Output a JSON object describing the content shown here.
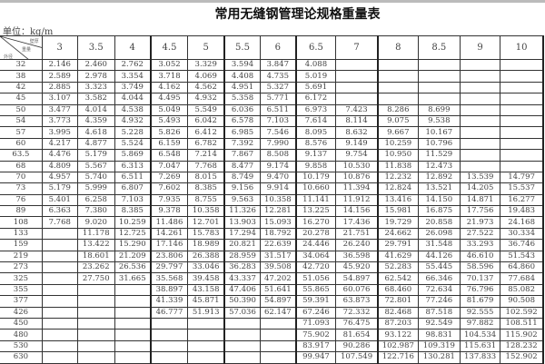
{
  "title": "常用无缝钢管理论规格重量表",
  "unit": "单位：kg/m",
  "corner": {
    "top": "壁厚",
    "middle": "重量",
    "bottom": "外径"
  },
  "columns": [
    "3",
    "3.5",
    "4",
    "4.5",
    "5",
    "5.5",
    "6",
    "6.5",
    "7",
    "8",
    "8.5",
    "9",
    "10"
  ],
  "rows": [
    {
      "od": "32",
      "v": [
        "2.146",
        "2.460",
        "2.762",
        "3.052",
        "3.329",
        "3.594",
        "3.847",
        "4.088",
        null,
        null,
        null,
        null,
        null
      ]
    },
    {
      "od": "38",
      "v": [
        "2.589",
        "2.978",
        "3.354",
        "3.718",
        "4.069",
        "4.408",
        "4.735",
        "5.019",
        null,
        null,
        null,
        null,
        null
      ]
    },
    {
      "od": "42",
      "v": [
        "2.885",
        "3.323",
        "3.749",
        "4.162",
        "4.562",
        "4.951",
        "5.327",
        "5.691",
        null,
        null,
        null,
        null,
        null
      ]
    },
    {
      "od": "45",
      "v": [
        "3.107",
        "3.582",
        "4.044",
        "4.495",
        "4.932",
        "5.358",
        "5.771",
        "6.172",
        null,
        null,
        null,
        null,
        null
      ]
    },
    {
      "od": "50",
      "v": [
        "3.477",
        "4.014",
        "4.538",
        "5.049",
        "5.549",
        "6.036",
        "6.511",
        "6.973",
        "7.423",
        "8.286",
        "8.699",
        null,
        null
      ]
    },
    {
      "od": "54",
      "v": [
        "3.773",
        "4.359",
        "4.932",
        "5.493",
        "6.042",
        "6.578",
        "7.103",
        "7.614",
        "8.114",
        "9.075",
        "9.538",
        null,
        null
      ]
    },
    {
      "od": "57",
      "v": [
        "3.995",
        "4.618",
        "5.228",
        "5.826",
        "6.412",
        "6.985",
        "7.546",
        "8.095",
        "8.632",
        "9.667",
        "10.167",
        null,
        null
      ]
    },
    {
      "od": "60",
      "v": [
        "4.217",
        "4.877",
        "5.524",
        "6.159",
        "6.782",
        "7.392",
        "7.990",
        "8.576",
        "9.149",
        "10.259",
        "10.796",
        null,
        null
      ]
    },
    {
      "od": "63.5",
      "v": [
        "4.476",
        "5.179",
        "5.869",
        "6.548",
        "7.214",
        "7.867",
        "8.508",
        "9.137",
        "9.754",
        "10.950",
        "11.529",
        null,
        null
      ]
    },
    {
      "od": "68",
      "v": [
        "4.809",
        "5.567",
        "6.313",
        "7.047",
        "7.768",
        "8.477",
        "9.174",
        "9.858",
        "10.530",
        "11.838",
        "12.473",
        null,
        null
      ]
    },
    {
      "od": "70",
      "v": [
        "4.957",
        "5.740",
        "6.511",
        "7.269",
        "8.015",
        "8.749",
        "9.470",
        "10.179",
        "10.876",
        "12.232",
        "12.892",
        "13.539",
        "14.797"
      ]
    },
    {
      "od": "73",
      "v": [
        "5.179",
        "5.999",
        "6.807",
        "7.602",
        "8.385",
        "9.156",
        "9.914",
        "10.660",
        "11.394",
        "12.824",
        "13.521",
        "14.205",
        "15.537"
      ]
    },
    {
      "od": "76",
      "v": [
        "5.401",
        "6.258",
        "7.103",
        "7.935",
        "8.755",
        "9.563",
        "10.358",
        "11.141",
        "11.912",
        "13.416",
        "14.150",
        "14.871",
        "16.277"
      ]
    },
    {
      "od": "89",
      "v": [
        "6.363",
        "7.380",
        "8.385",
        "9.378",
        "10.358",
        "11.326",
        "12.281",
        "13.225",
        "14.156",
        "15.981",
        "16.875",
        "17.756",
        "19.483"
      ]
    },
    {
      "od": "108",
      "v": [
        "7.768",
        "9.020",
        "10.259",
        "11.486",
        "12.701",
        "13.903",
        "15.093",
        "16.270",
        "17.436",
        "19.729",
        "20.858",
        "21.973",
        "24.168"
      ]
    },
    {
      "od": "133",
      "v": [
        null,
        "11.178",
        "12.725",
        "14.261",
        "15.783",
        "17.294",
        "18.792",
        "20.278",
        "21.751",
        "24.662",
        "26.098",
        "27.522",
        "30.334"
      ]
    },
    {
      "od": "159",
      "v": [
        null,
        "13.422",
        "15.290",
        "17.146",
        "18.989",
        "20.821",
        "22.639",
        "24.446",
        "26.240",
        "29.791",
        "31.548",
        "33.293",
        "36.746"
      ]
    },
    {
      "od": "219",
      "v": [
        null,
        "18.601",
        "21.209",
        "23.806",
        "26.388",
        "28.959",
        "31.517",
        "34.064",
        "36.598",
        "41.629",
        "44.126",
        "46.610",
        "51.543"
      ]
    },
    {
      "od": "273",
      "v": [
        null,
        "23.262",
        "26.536",
        "29.797",
        "33.046",
        "36.283",
        "39.508",
        "42.720",
        "45.920",
        "52.283",
        "55.445",
        "58.596",
        "64.860"
      ]
    },
    {
      "od": "325",
      "v": [
        null,
        "27.750",
        "31.665",
        "35.568",
        "39.458",
        "43.337",
        "47.202",
        "51.056",
        "54.897",
        "62.542",
        "66.346",
        "70.137",
        "77.684"
      ]
    },
    {
      "od": "355",
      "v": [
        null,
        null,
        null,
        "38.897",
        "43.158",
        "47.406",
        "51.641",
        "55.865",
        "60.076",
        "68.460",
        "72.634",
        "76.796",
        "85.082"
      ]
    },
    {
      "od": "377",
      "v": [
        null,
        null,
        null,
        "41.339",
        "45.871",
        "50.390",
        "54.897",
        "59.391",
        "63.873",
        "72.801",
        "77.246",
        "81.679",
        "90.508"
      ]
    },
    {
      "od": "426",
      "v": [
        null,
        null,
        null,
        "46.777",
        "51.913",
        "57.036",
        "62.147",
        "67.246",
        "72.332",
        "82.468",
        "87.518",
        "92.555",
        "102.592"
      ]
    },
    {
      "od": "450",
      "v": [
        null,
        null,
        null,
        null,
        null,
        null,
        null,
        "71.093",
        "76.475",
        "87.203",
        "92.549",
        "97.882",
        "108.511"
      ]
    },
    {
      "od": "480",
      "v": [
        null,
        null,
        null,
        null,
        null,
        null,
        null,
        "75.902",
        "81.654",
        "93.122",
        "98.831",
        "104.534",
        "115.902"
      ]
    },
    {
      "od": "530",
      "v": [
        null,
        null,
        null,
        null,
        null,
        null,
        null,
        "83.917",
        "90.286",
        "102.987",
        "109.319",
        "115.631",
        "128.232"
      ]
    },
    {
      "od": "630",
      "v": [
        null,
        null,
        null,
        null,
        null,
        null,
        null,
        "99.947",
        "107.549",
        "122.716",
        "130.281",
        "137.833",
        "152.902"
      ]
    }
  ]
}
